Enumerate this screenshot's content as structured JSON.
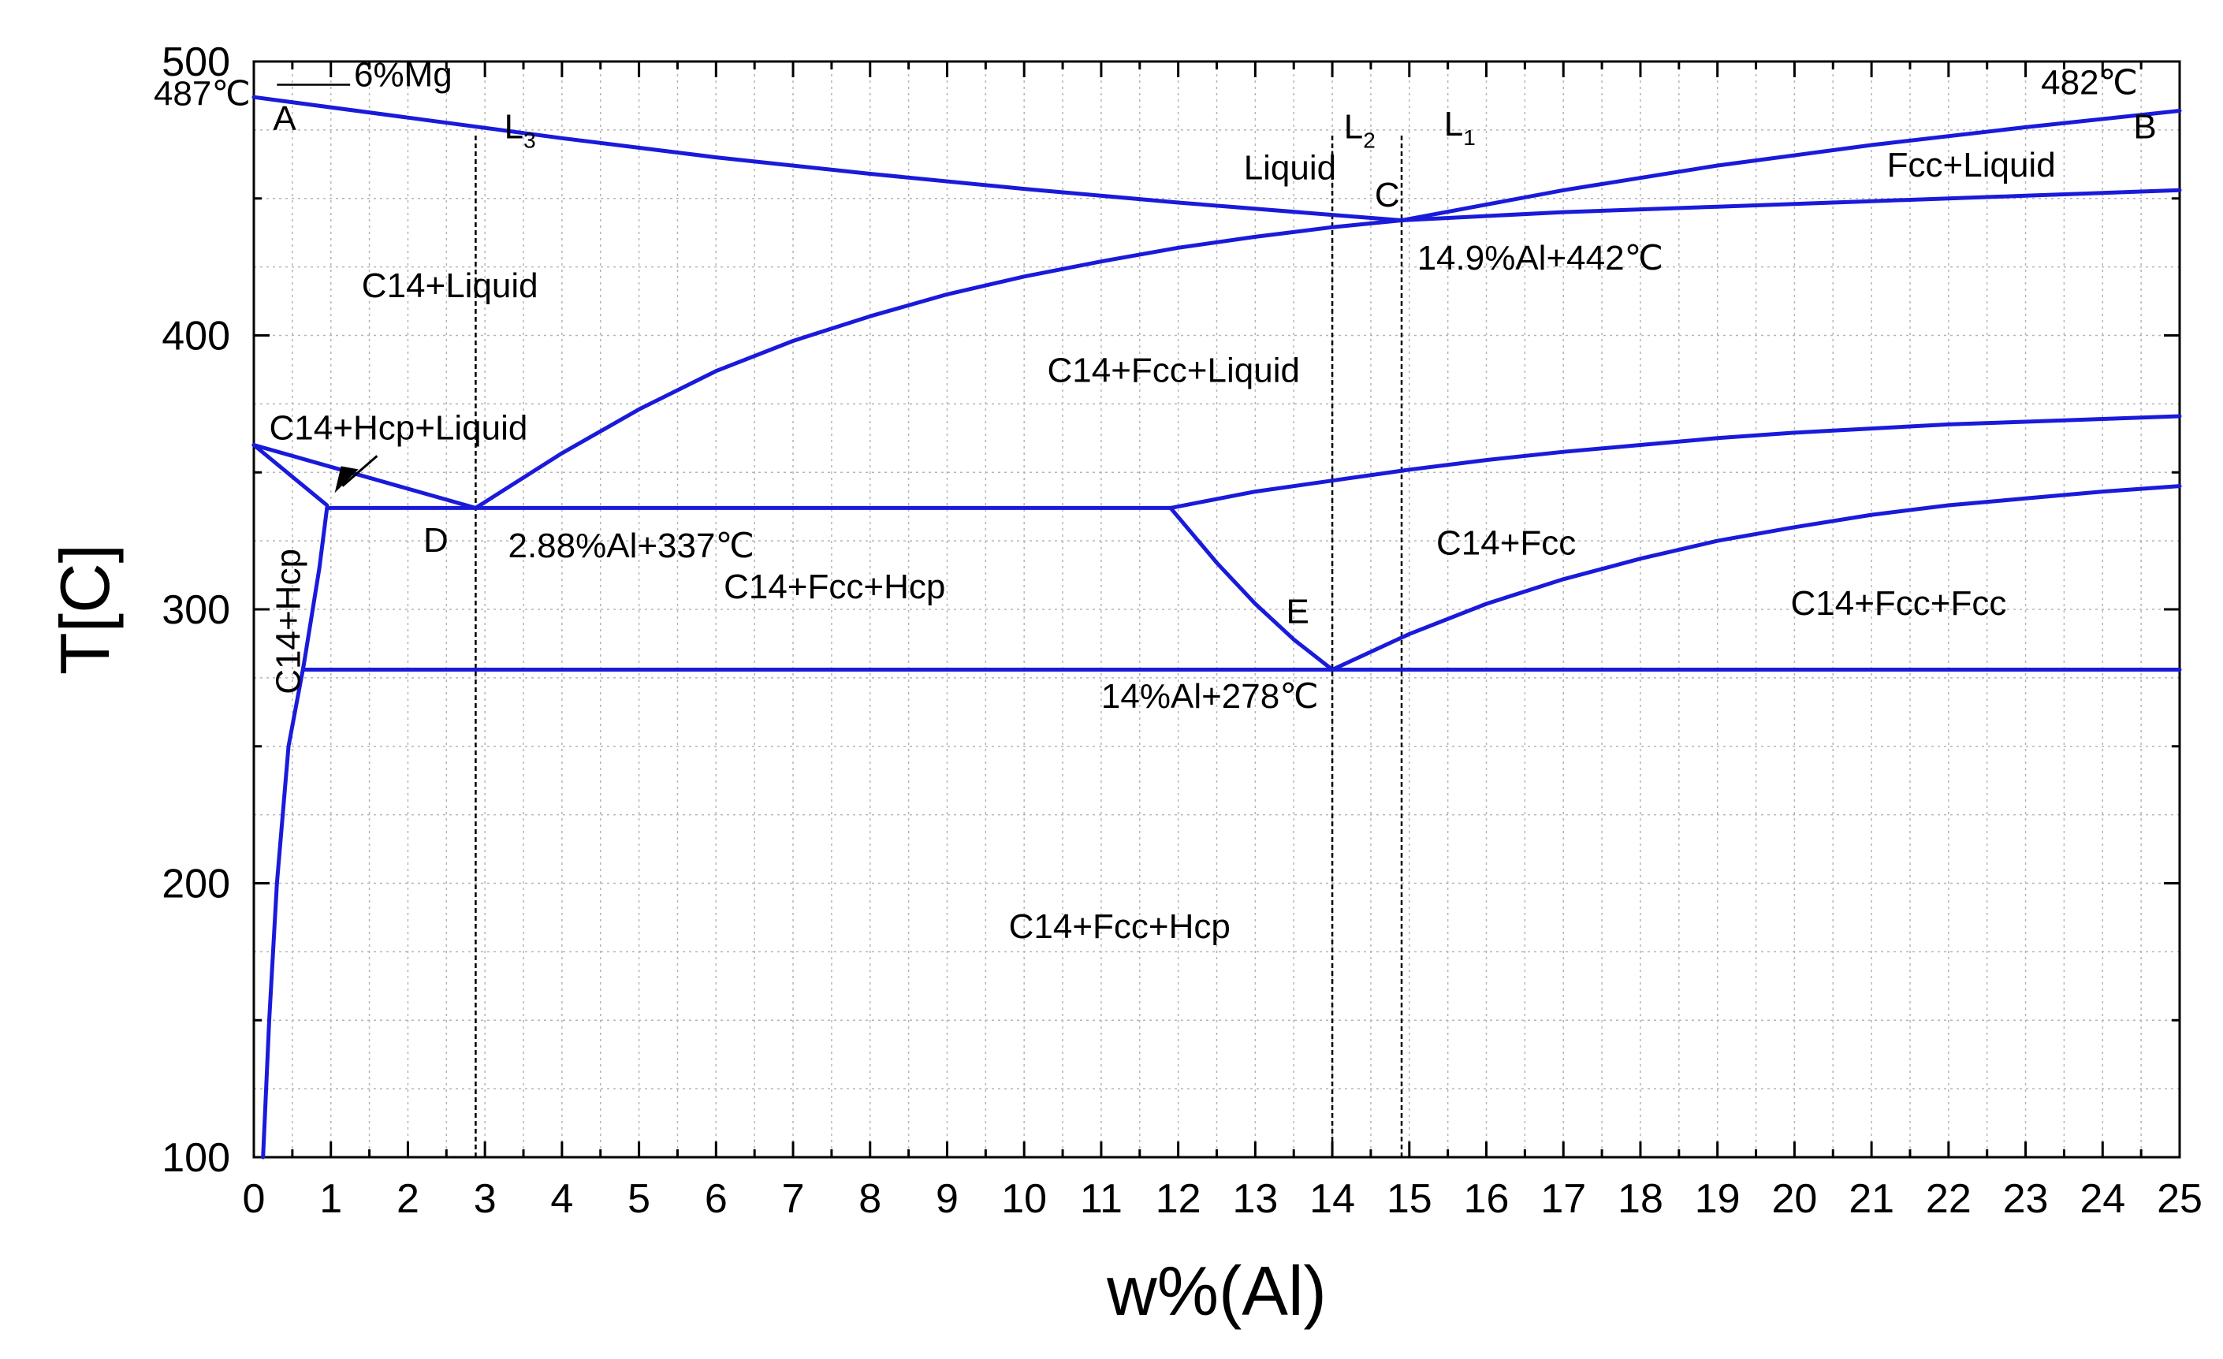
{
  "chart_data": {
    "type": "line",
    "title": "",
    "xlabel": "w%(Al)",
    "ylabel": "T[C]",
    "xlim": [
      0,
      25
    ],
    "ylim": [
      100,
      500
    ],
    "x_ticks": [
      0,
      1,
      2,
      3,
      4,
      5,
      6,
      7,
      8,
      9,
      10,
      11,
      12,
      13,
      14,
      15,
      16,
      17,
      18,
      19,
      20,
      21,
      22,
      23,
      24,
      25
    ],
    "y_ticks": [
      100,
      200,
      300,
      400,
      500
    ],
    "grid": true,
    "line_color": "#1a1adb",
    "series": [
      {
        "name": "liquidus-left",
        "x": [
          0,
          2,
          4,
          6,
          8,
          10,
          12,
          14,
          14.9
        ],
        "y": [
          487,
          479.5,
          472,
          465,
          459,
          453.5,
          448.5,
          444,
          442
        ]
      },
      {
        "name": "liquidus-right",
        "x": [
          14.9,
          17,
          19,
          21,
          23,
          25
        ],
        "y": [
          442,
          453,
          462,
          469.5,
          476,
          482
        ]
      },
      {
        "name": "fcc-liquid-lower",
        "x": [
          14.9,
          17,
          19,
          21,
          23,
          25
        ],
        "y": [
          442,
          445,
          447,
          449,
          451,
          453
        ]
      },
      {
        "name": "c14-liquid-boundary",
        "x": [
          2.88,
          4,
          5,
          6,
          7,
          8,
          9,
          10,
          11,
          12,
          13,
          14,
          14.9
        ],
        "y": [
          337,
          357,
          373,
          387,
          398,
          407,
          415,
          421.5,
          427,
          432,
          436,
          439.5,
          442
        ]
      },
      {
        "name": "hcp-liquid-upper",
        "x": [
          0,
          2.88
        ],
        "y": [
          360,
          337
        ]
      },
      {
        "name": "hcp-liquid-lower",
        "x": [
          0,
          0.95
        ],
        "y": [
          360,
          338
        ]
      },
      {
        "name": "eutectic-isotherm-337",
        "x": [
          0.95,
          11.9
        ],
        "y": [
          337,
          337
        ]
      },
      {
        "name": "c14-fcc-upper",
        "x": [
          11.9,
          13,
          14,
          15,
          16,
          17,
          18,
          19,
          20,
          21,
          22,
          23,
          24,
          25
        ],
        "y": [
          337,
          343,
          347,
          351,
          354.5,
          357.5,
          360,
          362.5,
          364.5,
          366,
          367.5,
          368.5,
          369.5,
          370.5
        ]
      },
      {
        "name": "fcc-hcp-boundary",
        "x": [
          11.9,
          12.5,
          13,
          13.5,
          14
        ],
        "y": [
          337,
          317,
          302,
          289,
          278
        ]
      },
      {
        "name": "fcc-fcc-boundary",
        "x": [
          14,
          15,
          16,
          17,
          18,
          19,
          20,
          21,
          22,
          23,
          24,
          25
        ],
        "y": [
          278,
          291,
          302,
          311,
          318.5,
          325,
          330,
          334.5,
          338,
          340.5,
          343,
          345
        ]
      },
      {
        "name": "isotherm-278",
        "x": [
          0.65,
          25
        ],
        "y": [
          278,
          278
        ]
      },
      {
        "name": "hcp-solvus",
        "x": [
          0.12,
          0.2,
          0.3,
          0.45,
          0.65,
          0.85,
          0.95
        ],
        "y": [
          100,
          150,
          200,
          250,
          280,
          315,
          337
        ]
      }
    ],
    "reference_lines": [
      {
        "name": "L3",
        "x": 2.88,
        "y_from": 100,
        "y_to": 473
      },
      {
        "name": "L2",
        "x": 14.0,
        "y_from": 100,
        "y_to": 473
      },
      {
        "name": "L1",
        "x": 14.9,
        "y_from": 100,
        "y_to": 473
      }
    ],
    "annotations": [
      {
        "name": "label-6mg",
        "text": "6%Mg",
        "x": 1.3,
        "y": 491
      },
      {
        "name": "label-487",
        "text": "487℃",
        "x": -1.3,
        "y": 484
      },
      {
        "name": "label-a",
        "text": "A",
        "x": 0.25,
        "y": 475
      },
      {
        "name": "label-l3",
        "text": "L",
        "sub": "3",
        "x": 3.25,
        "y": 472
      },
      {
        "name": "label-liquid",
        "text": "Liquid",
        "x": 12.85,
        "y": 457
      },
      {
        "name": "label-l2",
        "text": "L",
        "sub": "2",
        "x": 14.15,
        "y": 472
      },
      {
        "name": "label-l1",
        "text": "L",
        "sub": "1",
        "x": 15.45,
        "y": 473
      },
      {
        "name": "label-482",
        "text": "482℃",
        "x": 23.2,
        "y": 488
      },
      {
        "name": "label-b",
        "text": "B",
        "x": 24.4,
        "y": 472
      },
      {
        "name": "label-c",
        "text": "C",
        "x": 14.55,
        "y": 447
      },
      {
        "name": "label-fcc-liquid",
        "text": "Fcc+Liquid",
        "x": 21.2,
        "y": 458
      },
      {
        "name": "label-14-9-al",
        "text": "14.9%Al+442℃",
        "x": 15.1,
        "y": 424
      },
      {
        "name": "label-c14-liquid",
        "text": "C14+Liquid",
        "x": 1.4,
        "y": 414
      },
      {
        "name": "label-c14-fcc-liquid",
        "text": "C14+Fcc+Liquid",
        "x": 10.3,
        "y": 383
      },
      {
        "name": "label-c14-hcp-liquid",
        "text": "C14+Hcp+Liquid",
        "x": 0.2,
        "y": 362
      },
      {
        "name": "label-d",
        "text": "D",
        "x": 2.2,
        "y": 321
      },
      {
        "name": "label-2-88-al",
        "text": "2.88%Al+337℃",
        "x": 3.3,
        "y": 319
      },
      {
        "name": "label-c14-fcc-hcp-upper",
        "text": "C14+Fcc+Hcp",
        "x": 6.1,
        "y": 304
      },
      {
        "name": "label-c14-fcc",
        "text": "C14+Fcc",
        "x": 15.35,
        "y": 320
      },
      {
        "name": "label-c14-fcc-fcc",
        "text": "C14+Fcc+Fcc",
        "x": 19.95,
        "y": 298
      },
      {
        "name": "label-e",
        "text": "E",
        "x": 13.4,
        "y": 295
      },
      {
        "name": "label-14-al",
        "text": "14%Al+278℃",
        "x": 11.0,
        "y": 264
      },
      {
        "name": "label-c14-fcc-hcp-lower",
        "text": "C14+Fcc+Hcp",
        "x": 9.8,
        "y": 180
      },
      {
        "name": "label-c14-hcp",
        "text": "C14+Hcp",
        "x": 0.6,
        "y": 269,
        "rotate": -90
      }
    ]
  }
}
